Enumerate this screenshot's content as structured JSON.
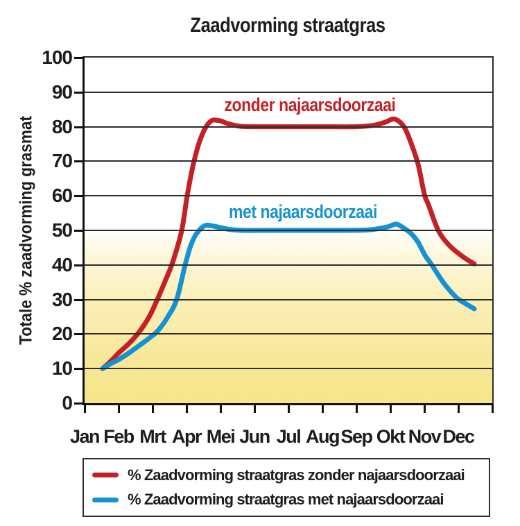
{
  "chart_data": {
    "type": "line",
    "title": "Zaadvorming straatgras",
    "ylabel": "Totale % zaadvorming grasmat",
    "xlabel": "",
    "ylim": [
      0,
      100
    ],
    "y_ticks": [
      0,
      10,
      20,
      30,
      40,
      50,
      60,
      70,
      80,
      90,
      100
    ],
    "categories": [
      "Jan",
      "Feb",
      "Mrt",
      "Apr",
      "Mei",
      "Jun",
      "Jul",
      "Aug",
      "Sep",
      "Okt",
      "Nov",
      "Dec"
    ],
    "grid": "horizontal",
    "legend_position": "bottom-box",
    "plot_background": {
      "top_color": "#ffffff",
      "bottom_color": "#f6e589",
      "description": "white above ~50%, fading into yellow toward 0%"
    },
    "series": [
      {
        "name": "% Zaadvorming straatgras zonder najaarsdoorzaai",
        "annotation": "zonder najaarsdoorzaai",
        "color": "#c42127",
        "monthly_values": {
          "Jan": 10,
          "Feb": 14.5,
          "Mrt": 28,
          "Apr": 60,
          "Mei": 81.5,
          "Jun": 80,
          "Jul": 80,
          "Aug": 80,
          "Sep": 80,
          "Okt": 82,
          "Nov": 57,
          "Dec": 43
        },
        "points": [
          [
            0.53,
            10
          ],
          [
            0.78,
            12.2
          ],
          [
            1.0,
            14.5
          ],
          [
            1.3,
            17.2
          ],
          [
            1.6,
            20.5
          ],
          [
            1.9,
            25
          ],
          [
            2.14,
            30
          ],
          [
            2.4,
            36
          ],
          [
            2.6,
            41
          ],
          [
            2.86,
            50
          ],
          [
            3.02,
            60
          ],
          [
            3.22,
            70
          ],
          [
            3.45,
            77.5
          ],
          [
            3.7,
            81.5
          ],
          [
            3.95,
            81.8
          ],
          [
            4.25,
            80.8
          ],
          [
            4.6,
            80.1
          ],
          [
            5.2,
            80
          ],
          [
            6.0,
            80
          ],
          [
            7.0,
            80
          ],
          [
            8.0,
            80
          ],
          [
            8.5,
            80.4
          ],
          [
            8.85,
            81.3
          ],
          [
            9.12,
            82.2
          ],
          [
            9.4,
            80
          ],
          [
            9.62,
            75
          ],
          [
            9.82,
            69
          ],
          [
            10.0,
            60.5
          ],
          [
            10.12,
            57.5
          ],
          [
            10.41,
            50
          ],
          [
            10.72,
            45.8
          ],
          [
            11.05,
            43
          ],
          [
            11.25,
            41.6
          ],
          [
            11.47,
            40.3
          ]
        ]
      },
      {
        "name": "% Zaadvorming straatgras met najaarsdoorzaai",
        "annotation": "met najaarsdoorzaai",
        "color": "#1592d2",
        "monthly_values": {
          "Jan": 10,
          "Feb": 12.5,
          "Mrt": 22,
          "Apr": 42,
          "Mei": 51,
          "Jun": 50,
          "Jul": 50,
          "Aug": 50,
          "Sep": 50,
          "Okt": 51.5,
          "Nov": 42.5,
          "Dec": 28.5
        },
        "points": [
          [
            0.53,
            10
          ],
          [
            0.8,
            11.6
          ],
          [
            1.0,
            12.6
          ],
          [
            1.3,
            14.5
          ],
          [
            1.6,
            16.6
          ],
          [
            1.9,
            18.8
          ],
          [
            2.16,
            21
          ],
          [
            2.45,
            25
          ],
          [
            2.71,
            30
          ],
          [
            2.96,
            40
          ],
          [
            3.12,
            45.5
          ],
          [
            3.29,
            49
          ],
          [
            3.55,
            51.4
          ],
          [
            3.85,
            51.1
          ],
          [
            4.25,
            50.3
          ],
          [
            4.7,
            50
          ],
          [
            5.5,
            50
          ],
          [
            6.5,
            50
          ],
          [
            7.5,
            50
          ],
          [
            8.3,
            50.1
          ],
          [
            8.65,
            50.5
          ],
          [
            8.95,
            51.1
          ],
          [
            9.18,
            51.8
          ],
          [
            9.45,
            50.3
          ],
          [
            9.62,
            49
          ],
          [
            9.82,
            46.5
          ],
          [
            10.02,
            42.8
          ],
          [
            10.22,
            40
          ],
          [
            10.57,
            34.8
          ],
          [
            10.94,
            30.6
          ],
          [
            11.18,
            29
          ],
          [
            11.47,
            27.3
          ]
        ]
      }
    ]
  }
}
